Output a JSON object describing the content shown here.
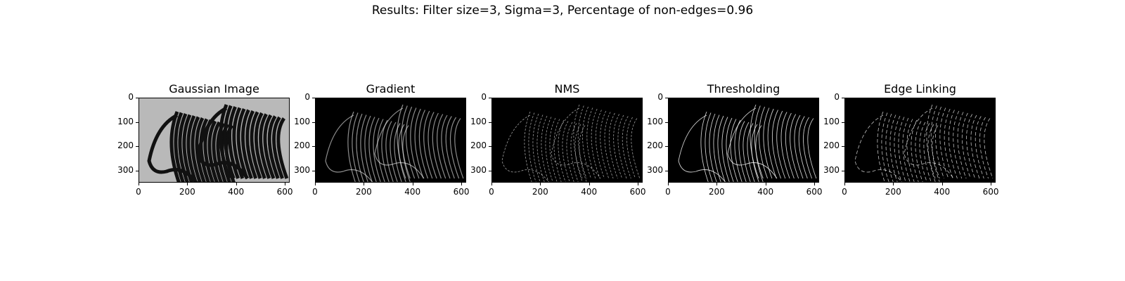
{
  "suptitle": "Results: Filter size=3, Sigma=3, Percentage of non-edges=0.96",
  "panels": [
    {
      "title": "Gaussian Image",
      "style": "gray"
    },
    {
      "title": "Gradient",
      "style": "grad"
    },
    {
      "title": "NMS",
      "style": "nms"
    },
    {
      "title": "Thresholding",
      "style": "thresh"
    },
    {
      "title": "Edge Linking",
      "style": "link"
    }
  ],
  "axes": {
    "yticks": [
      "0",
      "100",
      "200",
      "300"
    ],
    "xticks": [
      "0",
      "200",
      "400",
      "600"
    ],
    "xlim": [
      0,
      620
    ],
    "ylim": [
      0,
      350
    ]
  },
  "colors": {
    "background": "#000000",
    "edge": "#ffffff"
  }
}
